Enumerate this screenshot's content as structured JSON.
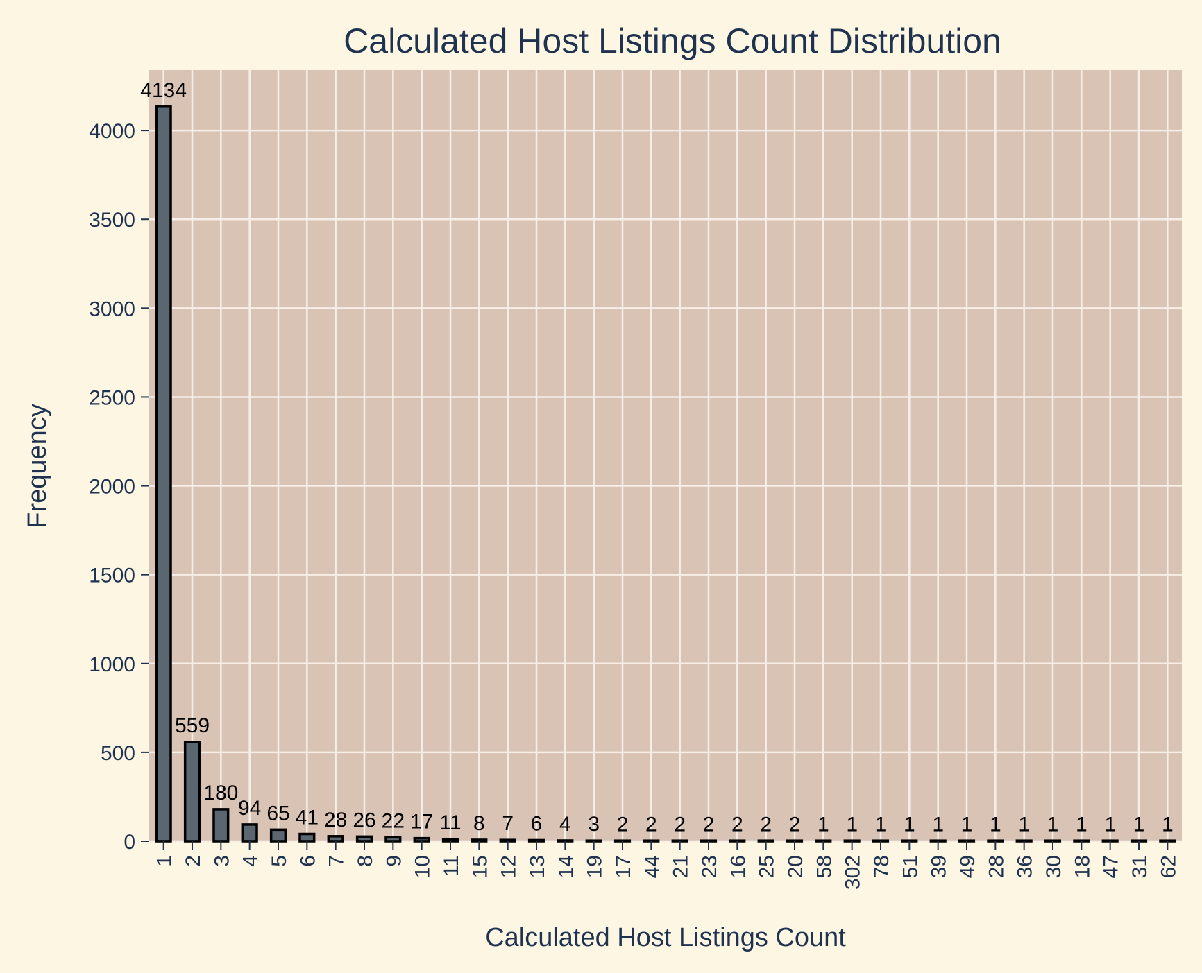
{
  "colors": {
    "page_background": "#fdf6e3",
    "plot_background": "#d9c3b5",
    "grid": "#f6efe8",
    "bar_fill": "#5b6770",
    "bar_edge": "#000000",
    "text": "#1f3350",
    "data_label": "#000000"
  },
  "chart_data": {
    "type": "bar",
    "title": "Calculated Host Listings Count Distribution",
    "xlabel": "Calculated Host Listings Count",
    "ylabel": "Frequency",
    "categories": [
      "1",
      "2",
      "3",
      "4",
      "5",
      "6",
      "7",
      "8",
      "9",
      "10",
      "11",
      "15",
      "12",
      "13",
      "14",
      "19",
      "17",
      "44",
      "21",
      "23",
      "16",
      "25",
      "20",
      "58",
      "302",
      "78",
      "51",
      "39",
      "49",
      "28",
      "36",
      "30",
      "18",
      "47",
      "31",
      "62"
    ],
    "values": [
      4134,
      559,
      180,
      94,
      65,
      41,
      28,
      26,
      22,
      17,
      11,
      8,
      7,
      6,
      4,
      3,
      2,
      2,
      2,
      2,
      2,
      2,
      2,
      1,
      1,
      1,
      1,
      1,
      1,
      1,
      1,
      1,
      1,
      1,
      1,
      1
    ],
    "data_labels": [
      "4134",
      "559",
      "180",
      "94",
      "65",
      "41",
      "28",
      "26",
      "22",
      "17",
      "11",
      "8",
      "7",
      "6",
      "4",
      "3",
      "2",
      "2",
      "2",
      "2",
      "2",
      "2",
      "2",
      "1",
      "1",
      "1",
      "1",
      "1",
      "1",
      "1",
      "1",
      "1",
      "1",
      "1",
      "1",
      "1"
    ],
    "ylim": [
      0,
      4340
    ],
    "yticks": [
      0,
      500,
      1000,
      1500,
      2000,
      2500,
      3000,
      3500,
      4000
    ],
    "grid": true,
    "legend": false
  }
}
